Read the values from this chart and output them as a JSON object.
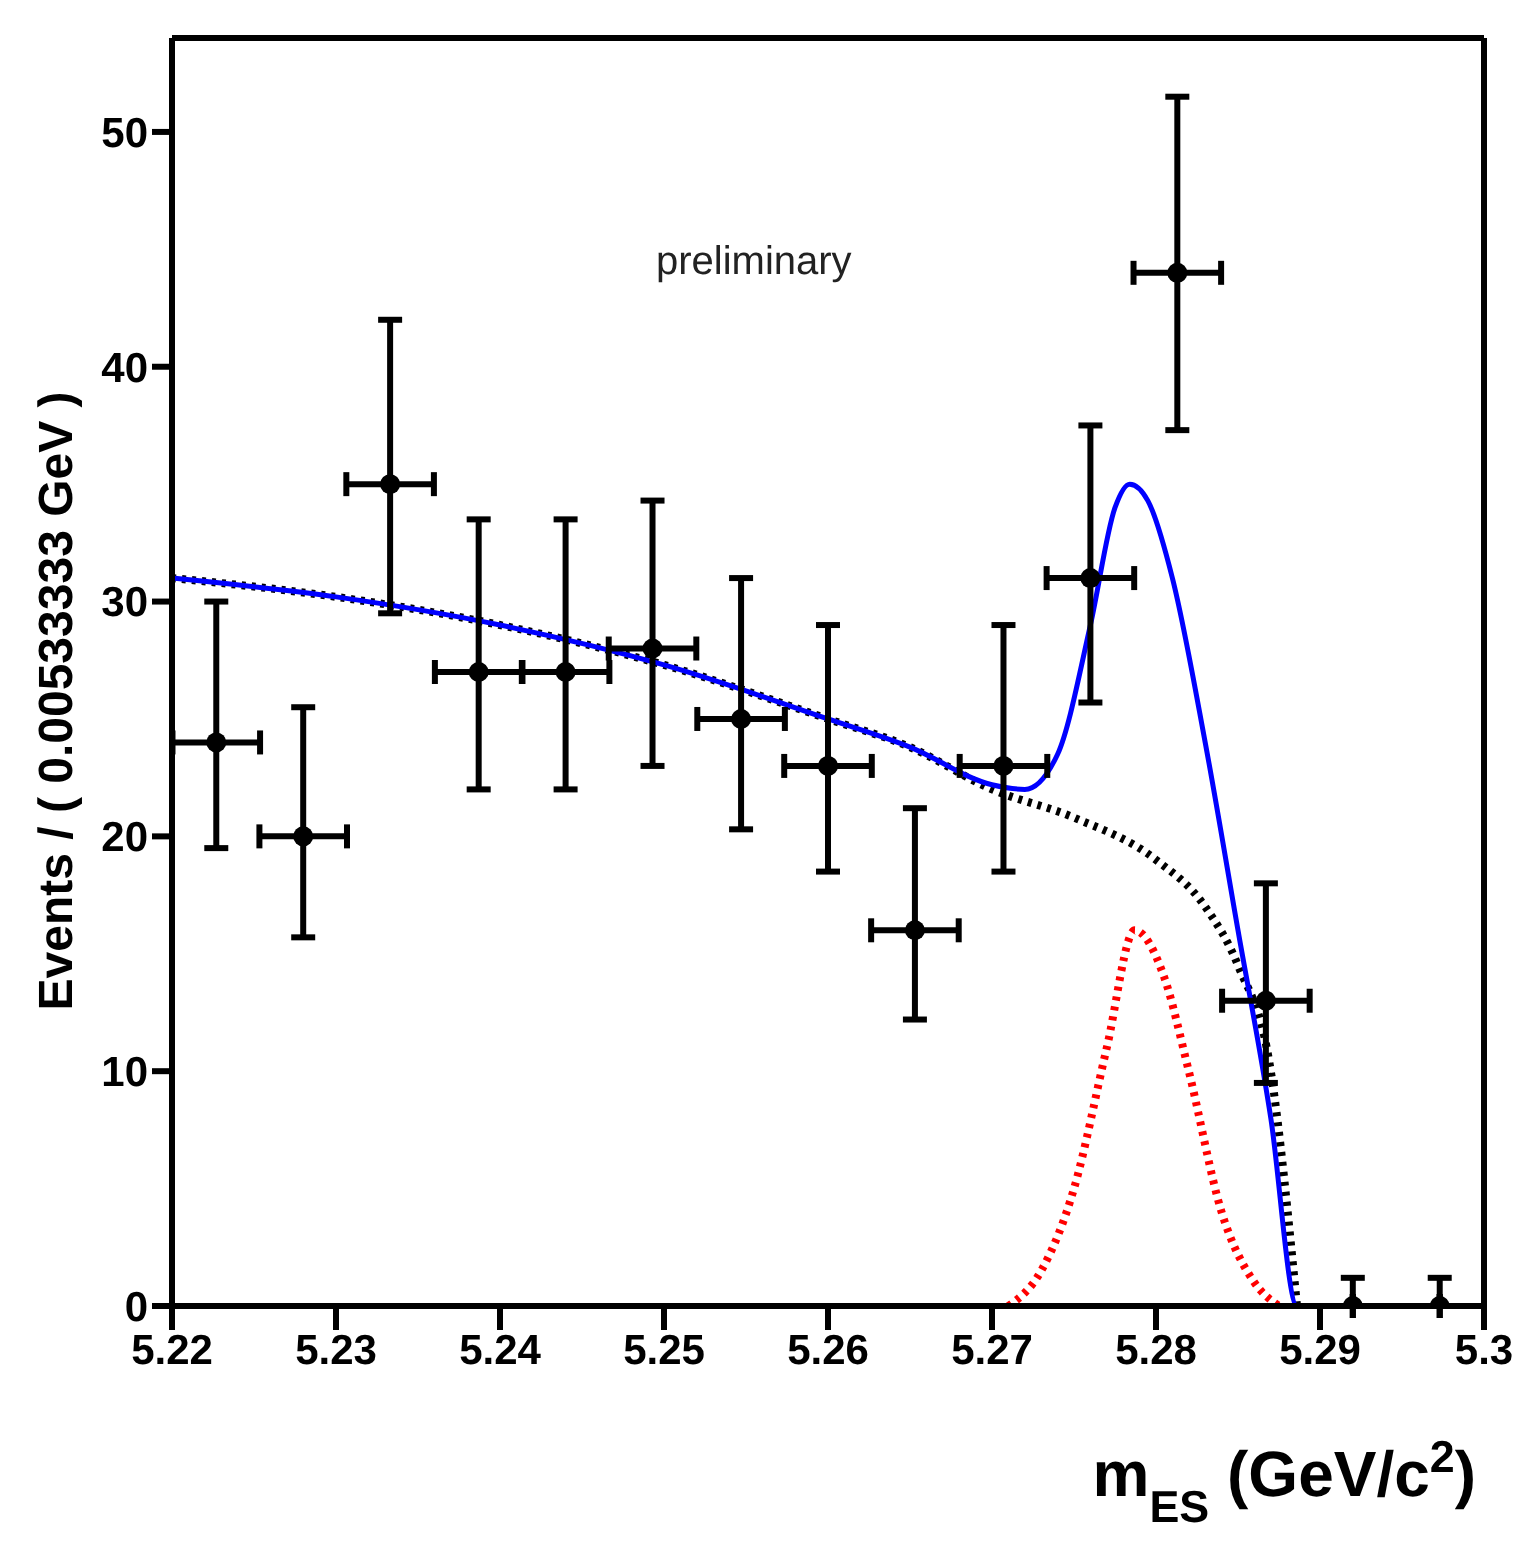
{
  "chart_data": {
    "type": "scatter",
    "xlabel": "m$_{ES}$ (GeV/c$^{2}$)",
    "ylabel": "Events / ( 0.00533333 GeV )",
    "annotations": [
      "preliminary"
    ],
    "xlim": [
      5.22,
      5.3
    ],
    "xticks": [
      5.22,
      5.23,
      5.24,
      5.25,
      5.26,
      5.27,
      5.28,
      5.29,
      5.3
    ],
    "ylim": [
      0,
      54
    ],
    "yticks": [
      0,
      10,
      20,
      30,
      40,
      50
    ],
    "grid": false,
    "series": [
      {
        "type": "line",
        "color": "#000000",
        "line_style": "dotted",
        "x": [
          5.22,
          5.23,
          5.24,
          5.25,
          5.26,
          5.265,
          5.27,
          5.275,
          5.28,
          5.283,
          5.285,
          5.287,
          5.2886
        ],
        "values": [
          31,
          30.2,
          29,
          27.3,
          25,
          23.8,
          22,
          20.8,
          19,
          17,
          14.5,
          10,
          0
        ]
      },
      {
        "type": "line",
        "color": "#ff0000",
        "line_style": "dotted",
        "x": [
          5.271,
          5.273,
          5.275,
          5.277,
          5.2787,
          5.2805,
          5.282,
          5.284,
          5.286,
          5.2875
        ],
        "values": [
          0,
          1.5,
          5,
          11,
          16,
          14,
          10,
          4,
          1,
          0
        ]
      },
      {
        "type": "line",
        "color": "#0000ff",
        "line_style": "solid",
        "x": [
          5.22,
          5.23,
          5.24,
          5.25,
          5.26,
          5.265,
          5.27,
          5.272,
          5.274,
          5.276,
          5.2775,
          5.2784,
          5.2795,
          5.281,
          5.283,
          5.285,
          5.287,
          5.2886,
          5.3
        ],
        "values": [
          31,
          30.2,
          29,
          27.3,
          25,
          23.8,
          22.2,
          22,
          23.5,
          29,
          34,
          35,
          34.3,
          31,
          24,
          16,
          8,
          0,
          0
        ]
      },
      {
        "color": "#000000",
        "marker": "circle",
        "x": [
          5.2227,
          5.228,
          5.2333,
          5.2387,
          5.244,
          5.2493,
          5.2547,
          5.26,
          5.2653,
          5.2707,
          5.276,
          5.2813,
          5.2867,
          5.292,
          5.2973
        ],
        "values": [
          24,
          20,
          35,
          27,
          27,
          28,
          25,
          23,
          16,
          23,
          31,
          44,
          13,
          0,
          0
        ],
        "errors": [
          [
            19.5,
            30
          ],
          [
            15.7,
            25.5
          ],
          [
            29.5,
            42
          ],
          [
            22,
            33.5
          ],
          [
            22,
            33.5
          ],
          [
            23,
            34.3
          ],
          [
            20.3,
            31
          ],
          [
            18.5,
            29
          ],
          [
            12.2,
            21.2
          ],
          [
            18.5,
            29
          ],
          [
            25.7,
            37.5
          ],
          [
            37.3,
            51.5
          ],
          [
            9.5,
            18
          ],
          [
            0,
            1.2
          ],
          [
            0,
            1.2
          ]
        ],
        "xerrors": [
          0.00267,
          0.00267,
          0.00267,
          0.00267,
          0.00267,
          0.00267,
          0.00267,
          0.00267,
          0.00267,
          0.00267,
          0.00267,
          0.00267,
          0.00267,
          null,
          null
        ]
      }
    ]
  }
}
